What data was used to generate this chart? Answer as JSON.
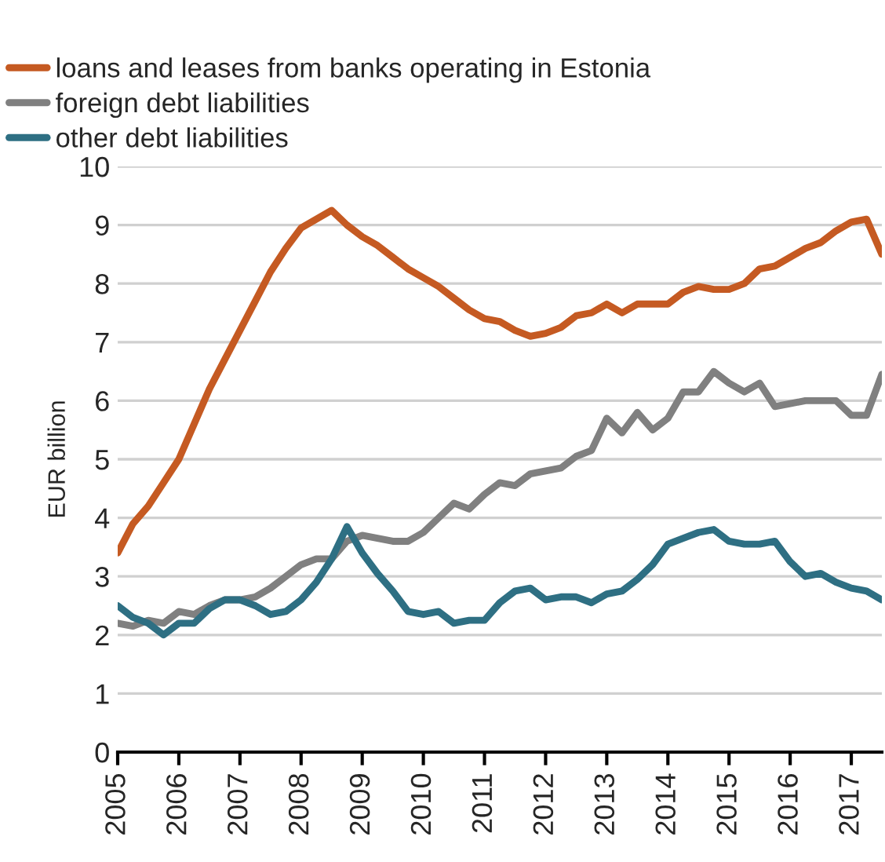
{
  "chart_data": {
    "type": "line",
    "ylabel": "EUR billion",
    "x": [
      2005,
      2005.25,
      2005.5,
      2005.75,
      2006,
      2006.25,
      2006.5,
      2006.75,
      2007,
      2007.25,
      2007.5,
      2007.75,
      2008,
      2008.25,
      2008.5,
      2008.75,
      2009,
      2009.25,
      2009.5,
      2009.75,
      2010,
      2010.25,
      2010.5,
      2010.75,
      2011,
      2011.25,
      2011.5,
      2011.75,
      2012,
      2012.25,
      2012.5,
      2012.75,
      2013,
      2013.25,
      2013.5,
      2013.75,
      2014,
      2014.25,
      2014.5,
      2014.75,
      2015,
      2015.25,
      2015.5,
      2015.75,
      2016,
      2016.25,
      2016.5,
      2016.75,
      2017,
      2017.25,
      2017.5
    ],
    "series": [
      {
        "name": "loans and leases from banks operating in Estonia",
        "color": "#c55a22",
        "values": [
          3.4,
          3.9,
          4.2,
          4.6,
          5.0,
          5.6,
          6.2,
          6.7,
          7.2,
          7.7,
          8.2,
          8.6,
          8.95,
          9.1,
          9.25,
          9.0,
          8.8,
          8.65,
          8.45,
          8.25,
          8.1,
          7.95,
          7.75,
          7.55,
          7.4,
          7.35,
          7.2,
          7.1,
          7.15,
          7.25,
          7.45,
          7.5,
          7.65,
          7.5,
          7.65,
          7.65,
          7.65,
          7.85,
          7.95,
          7.9,
          7.9,
          8.0,
          8.25,
          8.3,
          8.45,
          8.6,
          8.7,
          8.9,
          9.05,
          9.1,
          8.5
        ]
      },
      {
        "name": "foreign debt liabilities",
        "color": "#808080",
        "values": [
          2.2,
          2.15,
          2.25,
          2.2,
          2.4,
          2.35,
          2.5,
          2.6,
          2.6,
          2.65,
          2.8,
          3.0,
          3.2,
          3.3,
          3.3,
          3.6,
          3.7,
          3.65,
          3.6,
          3.6,
          3.75,
          4.0,
          4.25,
          4.15,
          4.4,
          4.6,
          4.55,
          4.75,
          4.8,
          4.85,
          5.05,
          5.15,
          5.7,
          5.45,
          5.8,
          5.5,
          5.7,
          6.15,
          6.15,
          6.5,
          6.3,
          6.15,
          6.3,
          5.9,
          5.95,
          6.0,
          6.0,
          6.0,
          5.75,
          5.75,
          6.45
        ]
      },
      {
        "name": "other debt liabilities",
        "color": "#2e6f83",
        "values": [
          2.5,
          2.3,
          2.2,
          2.0,
          2.2,
          2.2,
          2.45,
          2.6,
          2.6,
          2.5,
          2.35,
          2.4,
          2.6,
          2.9,
          3.3,
          3.85,
          3.4,
          3.05,
          2.75,
          2.4,
          2.35,
          2.4,
          2.2,
          2.25,
          2.25,
          2.55,
          2.75,
          2.8,
          2.6,
          2.65,
          2.65,
          2.55,
          2.7,
          2.75,
          2.95,
          3.2,
          3.55,
          3.65,
          3.75,
          3.8,
          3.6,
          3.55,
          3.55,
          3.6,
          3.25,
          3.0,
          3.05,
          2.9,
          2.8,
          2.75,
          2.6
        ]
      }
    ],
    "xlim": [
      2005,
      2017.5
    ],
    "xticks": [
      2005,
      2006,
      2007,
      2008,
      2009,
      2010,
      2011,
      2012,
      2013,
      2014,
      2015,
      2016,
      2017
    ],
    "ylim": [
      0,
      10
    ],
    "yticks": [
      0,
      1,
      2,
      3,
      4,
      5,
      6,
      7,
      8,
      9,
      10
    ],
    "grid": "y",
    "legend": "top",
    "marker": "none",
    "line_style": "solid"
  }
}
